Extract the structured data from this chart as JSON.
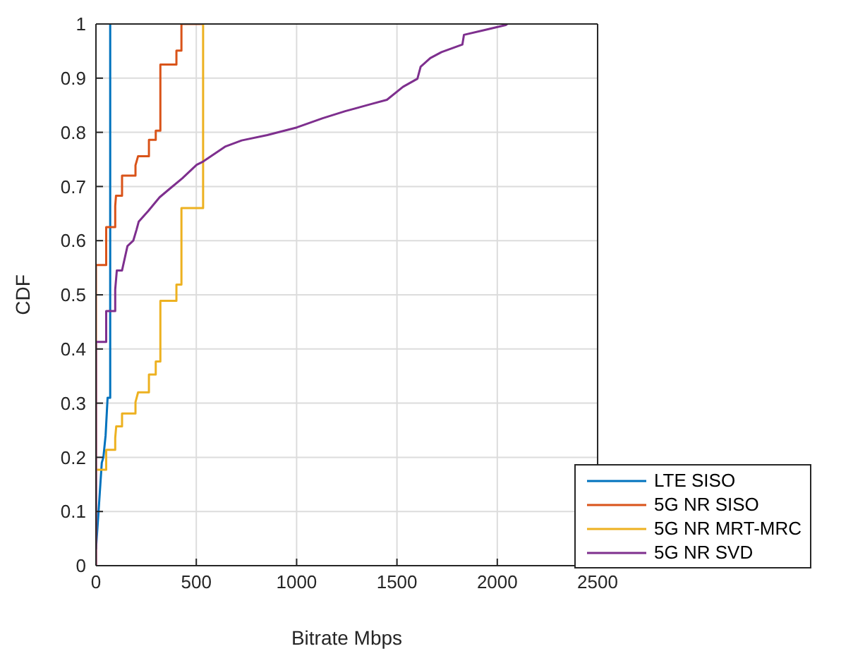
{
  "chart_data": {
    "type": "line",
    "xlabel": "Bitrate Mbps",
    "ylabel": "CDF",
    "xlim": [
      0,
      2500
    ],
    "xticks": [
      0,
      500,
      1000,
      1500,
      2000,
      2500
    ],
    "ylim": [
      0,
      1
    ],
    "yticks": [
      0,
      0.1,
      0.2,
      0.3,
      0.4,
      0.5,
      0.6,
      0.7,
      0.8,
      0.9,
      1
    ],
    "grid": true,
    "legend": "bottom right",
    "marker": "none",
    "line_style": "solid",
    "series": [
      {
        "name": "LTE SISO",
        "color": "#0072bd",
        "x": [
          0,
          13,
          29,
          37,
          48,
          58,
          71,
          71
        ],
        "values": [
          0.03,
          0.1,
          0.19,
          0.2,
          0.24,
          0.31,
          0.31,
          1
        ]
      },
      {
        "name": "5G NR SISO",
        "color": "#d95319",
        "x": [
          0,
          0,
          51,
          51,
          96,
          96,
          100,
          130,
          130,
          197,
          197,
          210,
          264,
          264,
          298,
          298,
          321,
          321,
          401,
          401,
          426,
          426,
          534
        ],
        "values": [
          0,
          0.555,
          0.555,
          0.625,
          0.625,
          0.664,
          0.683,
          0.683,
          0.72,
          0.72,
          0.739,
          0.756,
          0.756,
          0.786,
          0.786,
          0.803,
          0.803,
          0.925,
          0.925,
          0.951,
          0.951,
          1,
          1
        ]
      },
      {
        "name": "5G NR MRT-MRC",
        "color": "#edb120",
        "x": [
          0,
          51,
          51,
          96,
          96,
          101,
          130,
          130,
          197,
          197,
          210,
          264,
          264,
          298,
          298,
          321,
          321,
          401,
          401,
          426,
          426,
          534,
          534
        ],
        "values": [
          0.177,
          0.177,
          0.214,
          0.214,
          0.236,
          0.257,
          0.257,
          0.281,
          0.281,
          0.302,
          0.32,
          0.32,
          0.353,
          0.353,
          0.377,
          0.377,
          0.489,
          0.489,
          0.519,
          0.519,
          0.66,
          0.66,
          1
        ]
      },
      {
        "name": "5G NR SVD",
        "color": "#7e2f8e",
        "x": [
          0,
          0,
          51,
          51,
          96,
          96,
          104,
          130,
          157,
          186,
          202,
          213,
          261,
          317,
          365,
          430,
          502,
          534,
          646,
          726,
          854,
          1001,
          1130,
          1242,
          1370,
          1450,
          1530,
          1602,
          1618,
          1666,
          1722,
          1826,
          1834,
          1938,
          2042,
          2050
        ],
        "values": [
          0,
          0.413,
          0.413,
          0.47,
          0.47,
          0.51,
          0.545,
          0.545,
          0.59,
          0.6,
          0.62,
          0.635,
          0.655,
          0.68,
          0.695,
          0.715,
          0.74,
          0.746,
          0.774,
          0.785,
          0.795,
          0.809,
          0.826,
          0.839,
          0.852,
          0.86,
          0.884,
          0.899,
          0.921,
          0.937,
          0.948,
          0.962,
          0.98,
          0.989,
          0.998,
          1
        ]
      }
    ]
  }
}
